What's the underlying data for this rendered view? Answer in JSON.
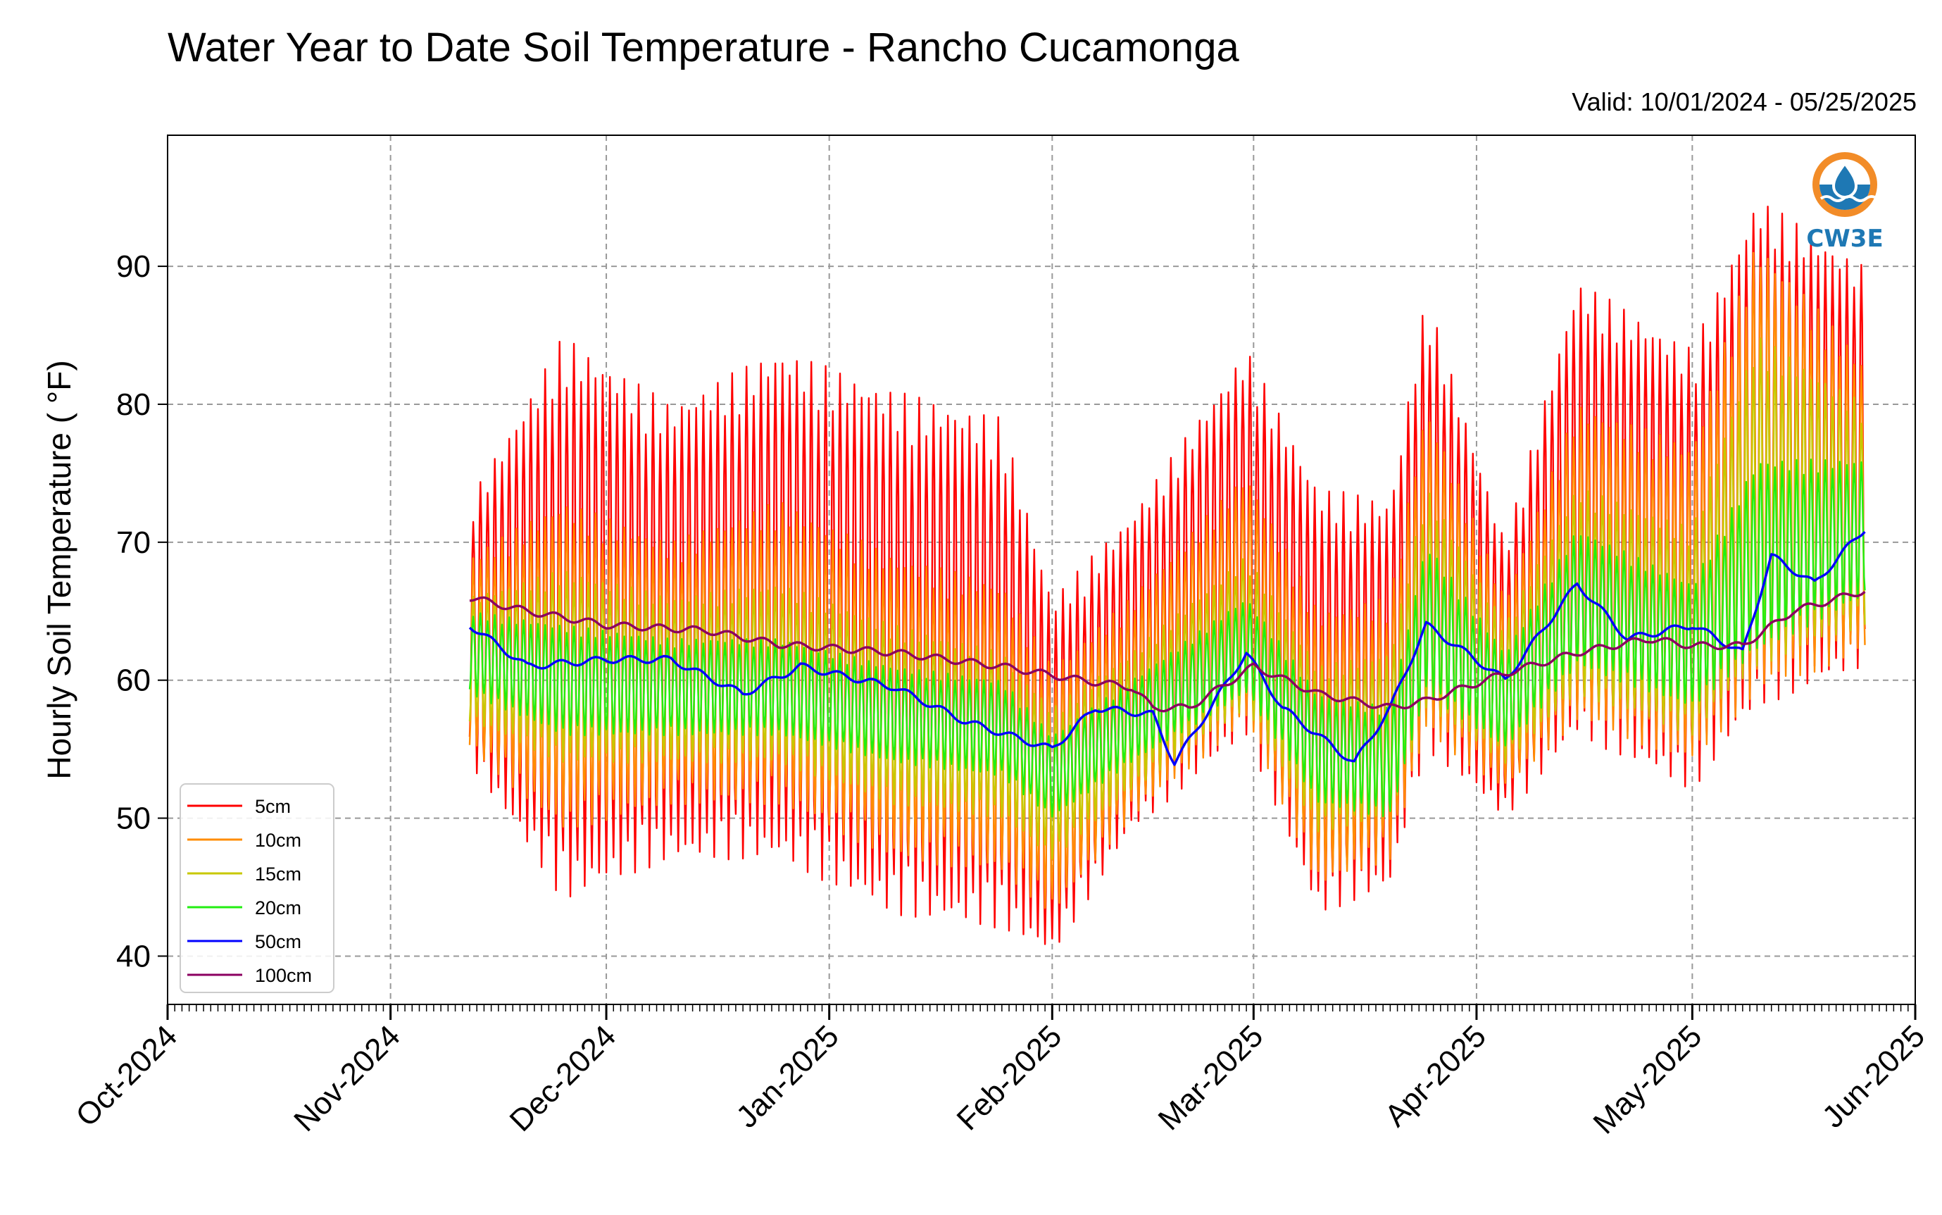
{
  "chart_data": {
    "type": "line",
    "title": "Water Year to Date Soil Temperature - Rancho Cucamonga",
    "subtitle": "Valid: 10/01/2024 - 05/25/2025",
    "xlabel": "",
    "ylabel": "Hourly Soil Temperature ( °F)",
    "x_range": [
      "2024-10-01",
      "2025-06-01"
    ],
    "ylim": [
      36.5,
      99.5
    ],
    "x_ticks": [
      "Oct-2024",
      "Nov-2024",
      "Dec-2024",
      "Jan-2025",
      "Feb-2025",
      "Mar-2025",
      "Apr-2025",
      "May-2025",
      "Jun-2025"
    ],
    "x_tick_dates": [
      "2024-10-01",
      "2024-11-01",
      "2024-12-01",
      "2025-01-01",
      "2025-02-01",
      "2025-03-01",
      "2025-04-01",
      "2025-05-01",
      "2025-06-01"
    ],
    "y_ticks": [
      40,
      50,
      60,
      70,
      80,
      90
    ],
    "grid": true,
    "legend_position": "lower-left",
    "data_start": "2024-11-12",
    "data_end": "2025-05-25",
    "daily_cycle": "each series oscillates daily between its min and max envelope; values below are approximate envelopes",
    "series": [
      {
        "name": "5cm",
        "color": "#ff0000",
        "envelope_dates": [
          "2024-11-12",
          "2024-11-25",
          "2024-12-10",
          "2024-12-25",
          "2025-01-10",
          "2025-01-25",
          "2025-02-01",
          "2025-02-12",
          "2025-02-28",
          "2025-03-10",
          "2025-03-20",
          "2025-03-25",
          "2025-04-05",
          "2025-04-15",
          "2025-05-01",
          "2025-05-10",
          "2025-05-25"
        ],
        "max": [
          73,
          85,
          80,
          84,
          81,
          79,
          66,
          72,
          84,
          74,
          73,
          88,
          70,
          89,
          84,
          95,
          90
        ],
        "min": [
          54,
          44,
          47,
          47,
          43,
          42,
          40,
          49,
          56,
          43,
          45,
          55,
          50,
          56,
          52,
          58,
          61
        ]
      },
      {
        "name": "10cm",
        "color": "#ff8c00",
        "envelope_dates": [
          "2024-11-12",
          "2024-11-25",
          "2024-12-10",
          "2024-12-25",
          "2025-01-10",
          "2025-01-25",
          "2025-02-01",
          "2025-02-12",
          "2025-02-28",
          "2025-03-10",
          "2025-03-20",
          "2025-03-25",
          "2025-04-05",
          "2025-04-15",
          "2025-05-01",
          "2025-05-10",
          "2025-05-25"
        ],
        "max": [
          69,
          73,
          70,
          73,
          69,
          67,
          61,
          66,
          75,
          65,
          66,
          80,
          66,
          80,
          77,
          92,
          83
        ],
        "min": [
          55,
          49,
          51,
          51,
          47,
          46,
          43,
          50,
          57,
          45,
          47,
          56,
          52,
          57,
          54,
          59,
          62
        ]
      },
      {
        "name": "15cm",
        "color": "#c8c800",
        "envelope_dates": [
          "2024-11-12",
          "2024-11-25",
          "2024-12-10",
          "2024-12-25",
          "2025-01-10",
          "2025-01-25",
          "2025-02-01",
          "2025-02-12",
          "2025-02-28",
          "2025-03-10",
          "2025-03-20",
          "2025-03-25",
          "2025-04-05",
          "2025-04-15",
          "2025-05-01",
          "2025-05-10",
          "2025-05-25"
        ],
        "max": [
          66,
          68,
          66,
          67,
          64,
          62,
          58,
          62,
          69,
          61,
          62,
          74,
          64,
          74,
          71,
          85,
          80
        ],
        "min": [
          57,
          54,
          54,
          54,
          51,
          50,
          47,
          52,
          58,
          49,
          50,
          58,
          54,
          59,
          56,
          61,
          64
        ]
      },
      {
        "name": "20cm",
        "color": "#22ee11",
        "envelope_dates": [
          "2024-11-12",
          "2024-11-25",
          "2024-12-10",
          "2024-12-25",
          "2025-01-10",
          "2025-01-25",
          "2025-02-01",
          "2025-02-12",
          "2025-02-28",
          "2025-03-10",
          "2025-03-20",
          "2025-03-25",
          "2025-04-05",
          "2025-04-15",
          "2025-05-01",
          "2025-05-10",
          "2025-05-25"
        ],
        "max": [
          65,
          64,
          63,
          63,
          61,
          60,
          56,
          60,
          66,
          59,
          58,
          70,
          62,
          71,
          67,
          76,
          76
        ],
        "min": [
          59,
          56,
          56,
          56,
          54,
          53,
          50,
          54,
          59,
          51,
          50,
          59,
          55,
          61,
          58,
          62,
          66
        ]
      },
      {
        "name": "50cm",
        "color": "#0000ff",
        "x": [
          "2024-11-12",
          "2024-11-20",
          "2024-12-01",
          "2024-12-10",
          "2024-12-20",
          "2024-12-28",
          "2025-01-10",
          "2025-01-20",
          "2025-02-01",
          "2025-02-07",
          "2025-02-15",
          "2025-02-18",
          "2025-02-28",
          "2025-03-05",
          "2025-03-15",
          "2025-03-20",
          "2025-03-25",
          "2025-04-05",
          "2025-04-15",
          "2025-04-22",
          "2025-05-01",
          "2025-05-08",
          "2025-05-12",
          "2025-05-18",
          "2025-05-25"
        ],
        "y": [
          64,
          61,
          61.5,
          61.5,
          59,
          61,
          59.5,
          57,
          55,
          58,
          57.5,
          54,
          62,
          58,
          54,
          58,
          64,
          60,
          67,
          63,
          64,
          62,
          69,
          67,
          71
        ]
      },
      {
        "name": "100cm",
        "color": "#8b0060",
        "x": [
          "2024-11-12",
          "2024-11-20",
          "2024-12-01",
          "2024-12-15",
          "2024-12-25",
          "2025-01-10",
          "2025-01-25",
          "2025-02-05",
          "2025-02-12",
          "2025-02-15",
          "2025-02-20",
          "2025-03-01",
          "2025-03-10",
          "2025-03-20",
          "2025-03-25",
          "2025-04-05",
          "2025-04-15",
          "2025-04-25",
          "2025-05-01",
          "2025-05-08",
          "2025-05-15",
          "2025-05-25"
        ],
        "y": [
          66,
          65,
          64,
          63.6,
          62.6,
          62,
          61,
          60,
          59.5,
          58,
          58,
          61,
          59,
          58,
          58.5,
          60.5,
          62,
          63,
          62.5,
          62.5,
          65,
          66.5
        ]
      }
    ]
  },
  "logo": {
    "text": "CW3E",
    "ring_color": "#f28c28",
    "water_color": "#1e78b4"
  }
}
